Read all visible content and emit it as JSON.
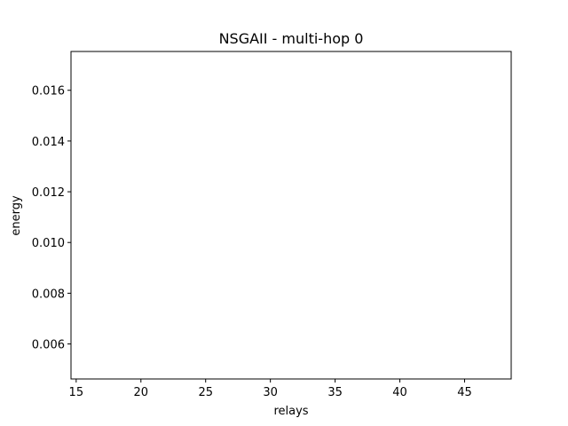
{
  "chart_data": {
    "type": "scatter",
    "title": "NSGAII - multi-hop 0",
    "xlabel": "relays",
    "ylabel": "energy",
    "xlim": [
      14.6,
      48.6
    ],
    "ylim": [
      0.00462,
      0.01753
    ],
    "xticks": [
      15,
      20,
      25,
      30,
      35,
      40,
      45
    ],
    "yticks": [
      0.006,
      0.008,
      0.01,
      0.012,
      0.014,
      0.016
    ],
    "ytick_labels": [
      "0.006",
      "0.008",
      "0.010",
      "0.012",
      "0.014",
      "0.016"
    ],
    "series": [],
    "grid": false,
    "legend": null
  }
}
